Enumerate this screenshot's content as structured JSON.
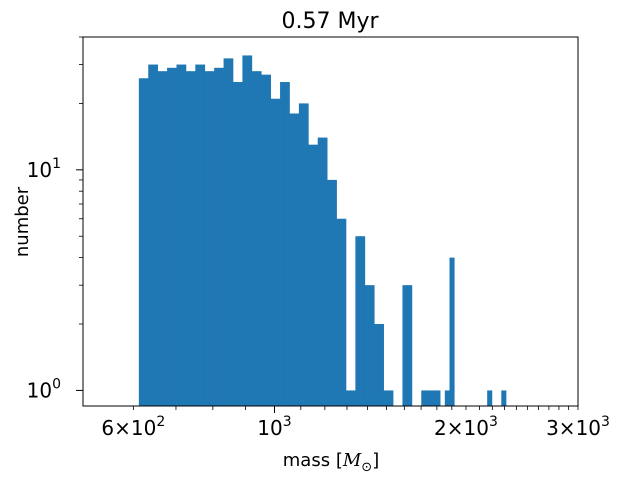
{
  "chart_data": {
    "type": "bar",
    "subtype": "histogram",
    "title": "0.57 Myr",
    "xlabel": "mass",
    "xlabel_unit_prefix": "[",
    "xlabel_unit_symbol": "M",
    "xlabel_unit_subscript": "⊙",
    "xlabel_unit_suffix": "]",
    "ylabel": "number",
    "xscale": "log",
    "yscale": "log",
    "xlim": [
      500,
      3000
    ],
    "ylim": [
      0.85,
      40
    ],
    "xticks": [
      {
        "value": 600,
        "mantissa": "6",
        "times": "×",
        "base": "10",
        "exp": "2"
      },
      {
        "value": 1000,
        "mantissa": "",
        "times": "",
        "base": "10",
        "exp": "3"
      },
      {
        "value": 2000,
        "mantissa": "2",
        "times": "×",
        "base": "10",
        "exp": "3"
      },
      {
        "value": 3000,
        "mantissa": "3",
        "times": "×",
        "base": "10",
        "exp": "3"
      }
    ],
    "yticks": [
      {
        "value": 1,
        "base": "10",
        "exp": "0"
      },
      {
        "value": 10,
        "base": "10",
        "exp": "1"
      }
    ],
    "color": "#1f77b4",
    "bin_left": 612,
    "bin_log_width": 0.0074,
    "counts": [
      26,
      26,
      30,
      30,
      28,
      28,
      29,
      29,
      30,
      30,
      28,
      28,
      30,
      30,
      28,
      28,
      29,
      29,
      32,
      32,
      25,
      25,
      33,
      33,
      28,
      28,
      27,
      27,
      21,
      21,
      25,
      25,
      18,
      18,
      20,
      20,
      13,
      13,
      14,
      14,
      9,
      9,
      6,
      6,
      1,
      1,
      5,
      5,
      3,
      3,
      2,
      2,
      1,
      1,
      0,
      0,
      3,
      3,
      0,
      0,
      1,
      1,
      1,
      1,
      0,
      1,
      4,
      0,
      0,
      0,
      0,
      0,
      0,
      0,
      1,
      0,
      0,
      1
    ]
  }
}
